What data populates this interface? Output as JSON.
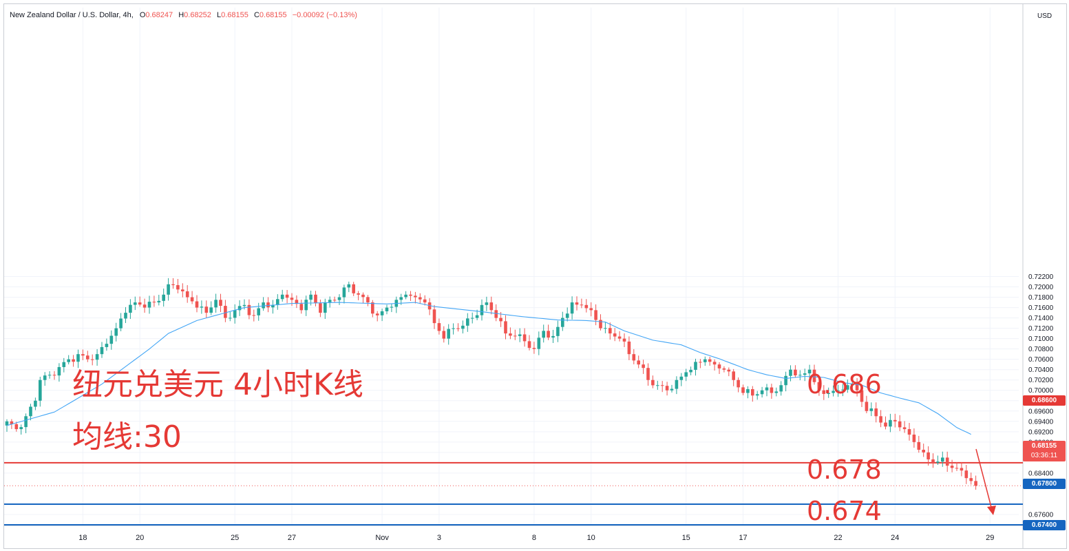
{
  "legend": {
    "symbol": "New Zealand Dollar / U.S. Dollar, 4h,",
    "o_label": "O",
    "o_value": "0.68247",
    "h_label": "H",
    "h_value": "0.68252",
    "l_label": "L",
    "l_value": "0.68155",
    "c_label": "C",
    "c_value": "0.68155",
    "change": "−0.00092 (−0.13%)"
  },
  "annotations": {
    "title": "纽元兑美元 4小时K线",
    "ma_label": "均线:30",
    "level_686": "0.686",
    "level_678": "0.678",
    "level_674": "0.674"
  },
  "badges": {
    "r686": "0.68600",
    "r678": "0.67800",
    "r674": "0.67400",
    "last_price": "0.68155",
    "countdown": "03:36:11",
    "currency": "USD"
  },
  "colors": {
    "up": "#26a69a",
    "down": "#ef5350",
    "ma": "#42a5f5",
    "resistance": "#e53935",
    "support": "#1565c0",
    "annotation_arrow": "#e53935"
  },
  "chart_data": {
    "type": "candlestick",
    "title": "纽元兑美元 4小时K线",
    "symbol": "NZDUSD",
    "timeframe": "4h",
    "ylim": [
      0.674,
      0.774
    ],
    "y_ticks": [
      "0.72200",
      "0.72000",
      "0.71800",
      "0.71600",
      "0.71400",
      "0.71200",
      "0.71000",
      "0.70800",
      "0.70600",
      "0.70400",
      "0.70200",
      "0.70000",
      "0.69800",
      "0.69600",
      "0.69400",
      "0.69200",
      "0.69000",
      "0.68800",
      "0.68400",
      "0.67600"
    ],
    "x_ticks": [
      {
        "label": "18",
        "bar": 16
      },
      {
        "label": "20",
        "bar": 28
      },
      {
        "label": "25",
        "bar": 48
      },
      {
        "label": "27",
        "bar": 60
      },
      {
        "label": "Nov",
        "bar": 79
      },
      {
        "label": "3",
        "bar": 91
      },
      {
        "label": "8",
        "bar": 111
      },
      {
        "label": "10",
        "bar": 123
      },
      {
        "label": "15",
        "bar": 143
      },
      {
        "label": "17",
        "bar": 155
      },
      {
        "label": "22",
        "bar": 175
      },
      {
        "label": "24",
        "bar": 187
      },
      {
        "label": "29",
        "bar": 207
      }
    ],
    "anchor_closes": [
      [
        0,
        0.694
      ],
      [
        2,
        0.6925
      ],
      [
        4,
        0.695
      ],
      [
        6,
        0.698
      ],
      [
        7,
        0.702
      ],
      [
        9,
        0.703
      ],
      [
        11,
        0.7045
      ],
      [
        13,
        0.706
      ],
      [
        15,
        0.707
      ],
      [
        17,
        0.706
      ],
      [
        19,
        0.707
      ],
      [
        21,
        0.709
      ],
      [
        23,
        0.712
      ],
      [
        25,
        0.715
      ],
      [
        27,
        0.717
      ],
      [
        29,
        0.716
      ],
      [
        31,
        0.717
      ],
      [
        33,
        0.7185
      ],
      [
        34,
        0.7205
      ],
      [
        36,
        0.7195
      ],
      [
        38,
        0.718
      ],
      [
        40,
        0.716
      ],
      [
        42,
        0.715
      ],
      [
        44,
        0.7175
      ],
      [
        46,
        0.714
      ],
      [
        48,
        0.7155
      ],
      [
        50,
        0.7165
      ],
      [
        52,
        0.7145
      ],
      [
        54,
        0.717
      ],
      [
        56,
        0.7165
      ],
      [
        58,
        0.7185
      ],
      [
        60,
        0.7175
      ],
      [
        62,
        0.7155
      ],
      [
        64,
        0.7185
      ],
      [
        66,
        0.715
      ],
      [
        68,
        0.7175
      ],
      [
        70,
        0.718
      ],
      [
        72,
        0.7205
      ],
      [
        74,
        0.7185
      ],
      [
        76,
        0.717
      ],
      [
        78,
        0.7145
      ],
      [
        80,
        0.716
      ],
      [
        82,
        0.7175
      ],
      [
        84,
        0.7185
      ],
      [
        86,
        0.718
      ],
      [
        88,
        0.717
      ],
      [
        90,
        0.713
      ],
      [
        92,
        0.71
      ],
      [
        94,
        0.712
      ],
      [
        96,
        0.7125
      ],
      [
        98,
        0.714
      ],
      [
        100,
        0.7165
      ],
      [
        101,
        0.717
      ],
      [
        103,
        0.714
      ],
      [
        105,
        0.711
      ],
      [
        107,
        0.7105
      ],
      [
        109,
        0.7095
      ],
      [
        111,
        0.708
      ],
      [
        113,
        0.7115
      ],
      [
        115,
        0.7105
      ],
      [
        117,
        0.714
      ],
      [
        119,
        0.717
      ],
      [
        121,
        0.7165
      ],
      [
        123,
        0.7155
      ],
      [
        125,
        0.712
      ],
      [
        127,
        0.711
      ],
      [
        129,
        0.71
      ],
      [
        131,
        0.707
      ],
      [
        133,
        0.705
      ],
      [
        135,
        0.702
      ],
      [
        137,
        0.701
      ],
      [
        139,
        0.7
      ],
      [
        141,
        0.702
      ],
      [
        143,
        0.7035
      ],
      [
        145,
        0.7055
      ],
      [
        147,
        0.706
      ],
      [
        149,
        0.705
      ],
      [
        151,
        0.704
      ],
      [
        153,
        0.702
      ],
      [
        155,
        0.6995
      ],
      [
        157,
        0.699
      ],
      [
        159,
        0.7
      ],
      [
        161,
        0.6995
      ],
      [
        163,
        0.701
      ],
      [
        165,
        0.704
      ],
      [
        167,
        0.703
      ],
      [
        169,
        0.704
      ],
      [
        171,
        0.7
      ],
      [
        173,
        0.6995
      ],
      [
        175,
        0.7
      ],
      [
        177,
        0.701
      ],
      [
        179,
        0.7
      ],
      [
        181,
        0.696
      ],
      [
        183,
        0.695
      ],
      [
        185,
        0.693
      ],
      [
        187,
        0.694
      ],
      [
        189,
        0.6925
      ],
      [
        191,
        0.69
      ],
      [
        193,
        0.688
      ],
      [
        195,
        0.686
      ],
      [
        197,
        0.687
      ],
      [
        199,
        0.685
      ],
      [
        201,
        0.6845
      ],
      [
        203,
        0.68247
      ],
      [
        204,
        0.68155
      ]
    ],
    "ma_period": 30,
    "ma_anchors": [
      [
        0,
        0.6932
      ],
      [
        10,
        0.6958
      ],
      [
        20,
        0.7012
      ],
      [
        30,
        0.708
      ],
      [
        34,
        0.711
      ],
      [
        40,
        0.7135
      ],
      [
        50,
        0.716
      ],
      [
        60,
        0.7168
      ],
      [
        70,
        0.717
      ],
      [
        80,
        0.7167
      ],
      [
        86,
        0.717
      ],
      [
        90,
        0.7162
      ],
      [
        100,
        0.7152
      ],
      [
        108,
        0.7143
      ],
      [
        116,
        0.7136
      ],
      [
        122,
        0.7135
      ],
      [
        126,
        0.7132
      ],
      [
        130,
        0.7115
      ],
      [
        136,
        0.7097
      ],
      [
        142,
        0.7088
      ],
      [
        146,
        0.7073
      ],
      [
        150,
        0.7061
      ],
      [
        156,
        0.704
      ],
      [
        160,
        0.703
      ],
      [
        164,
        0.7023
      ],
      [
        168,
        0.7027
      ],
      [
        172,
        0.7025
      ],
      [
        176,
        0.7015
      ],
      [
        180,
        0.701
      ],
      [
        184,
        0.6995
      ],
      [
        188,
        0.6985
      ],
      [
        192,
        0.6976
      ],
      [
        196,
        0.6955
      ],
      [
        200,
        0.6928
      ],
      [
        203,
        0.6915
      ]
    ],
    "horizontal_levels": [
      {
        "value": 0.686,
        "label": "0.686"
      },
      {
        "value": 0.678,
        "label": "0.678"
      },
      {
        "value": 0.674,
        "label": "0.674"
      }
    ],
    "last_price": 0.68155,
    "legend": "top-left",
    "grid": true
  }
}
